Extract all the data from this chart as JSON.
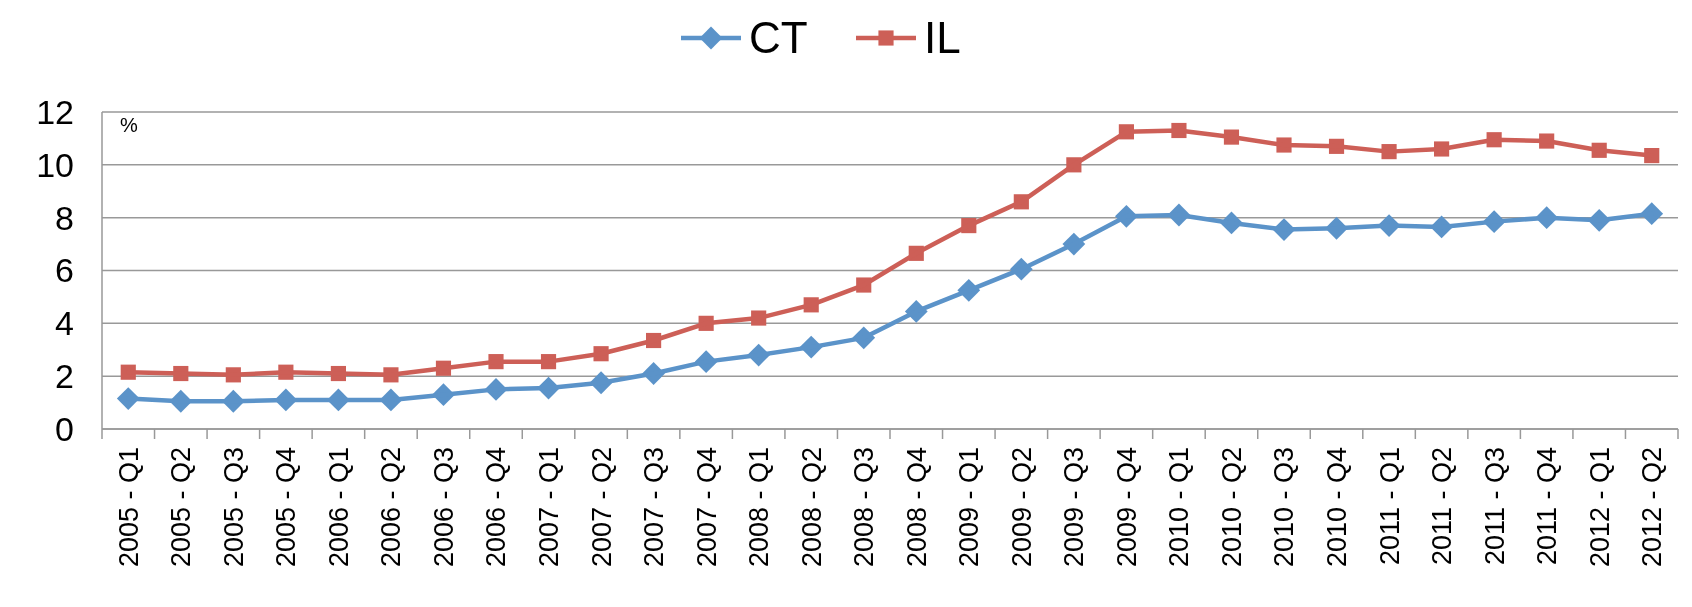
{
  "chart_data": {
    "type": "line",
    "categories": [
      "2005 - Q1",
      "2005 - Q2",
      "2005 - Q3",
      "2005 - Q4",
      "2006 - Q1",
      "2006 - Q2",
      "2006 - Q3",
      "2006 - Q4",
      "2007 - Q1",
      "2007 - Q2",
      "2007 - Q3",
      "2007 - Q4",
      "2008 - Q1",
      "2008 - Q2",
      "2008 - Q3",
      "2008 - Q4",
      "2009 - Q1",
      "2009 - Q2",
      "2009 - Q3",
      "2009 - Q4",
      "2010 - Q1",
      "2010 - Q2",
      "2010 - Q3",
      "2010 - Q4",
      "2011 - Q1",
      "2011 - Q2",
      "2011 - Q3",
      "2011 - Q4",
      "2012 - Q1",
      "2012 - Q2"
    ],
    "series": [
      {
        "name": "CT",
        "color": "#5b93c9",
        "marker": "diamond",
        "values": [
          1.15,
          1.05,
          1.05,
          1.1,
          1.1,
          1.1,
          1.3,
          1.5,
          1.55,
          1.75,
          2.1,
          2.55,
          2.8,
          3.1,
          3.45,
          4.45,
          5.25,
          6.05,
          7.0,
          8.05,
          8.1,
          7.8,
          7.55,
          7.6,
          7.7,
          7.65,
          7.85,
          8.0,
          7.9,
          8.15
        ]
      },
      {
        "name": "IL",
        "color": "#cd5f57",
        "marker": "square",
        "values": [
          2.15,
          2.1,
          2.05,
          2.15,
          2.1,
          2.05,
          2.3,
          2.55,
          2.55,
          2.85,
          3.35,
          4.0,
          4.2,
          4.7,
          5.45,
          6.65,
          7.7,
          8.6,
          10.0,
          11.25,
          11.3,
          11.05,
          10.75,
          10.7,
          10.5,
          10.6,
          10.95,
          10.9,
          10.55,
          10.35
        ]
      }
    ],
    "ylim": [
      0,
      12
    ],
    "yticks": [
      0,
      2,
      4,
      6,
      8,
      10,
      12
    ],
    "grid": "y",
    "legend": "top",
    "annotations": [
      "%"
    ]
  }
}
